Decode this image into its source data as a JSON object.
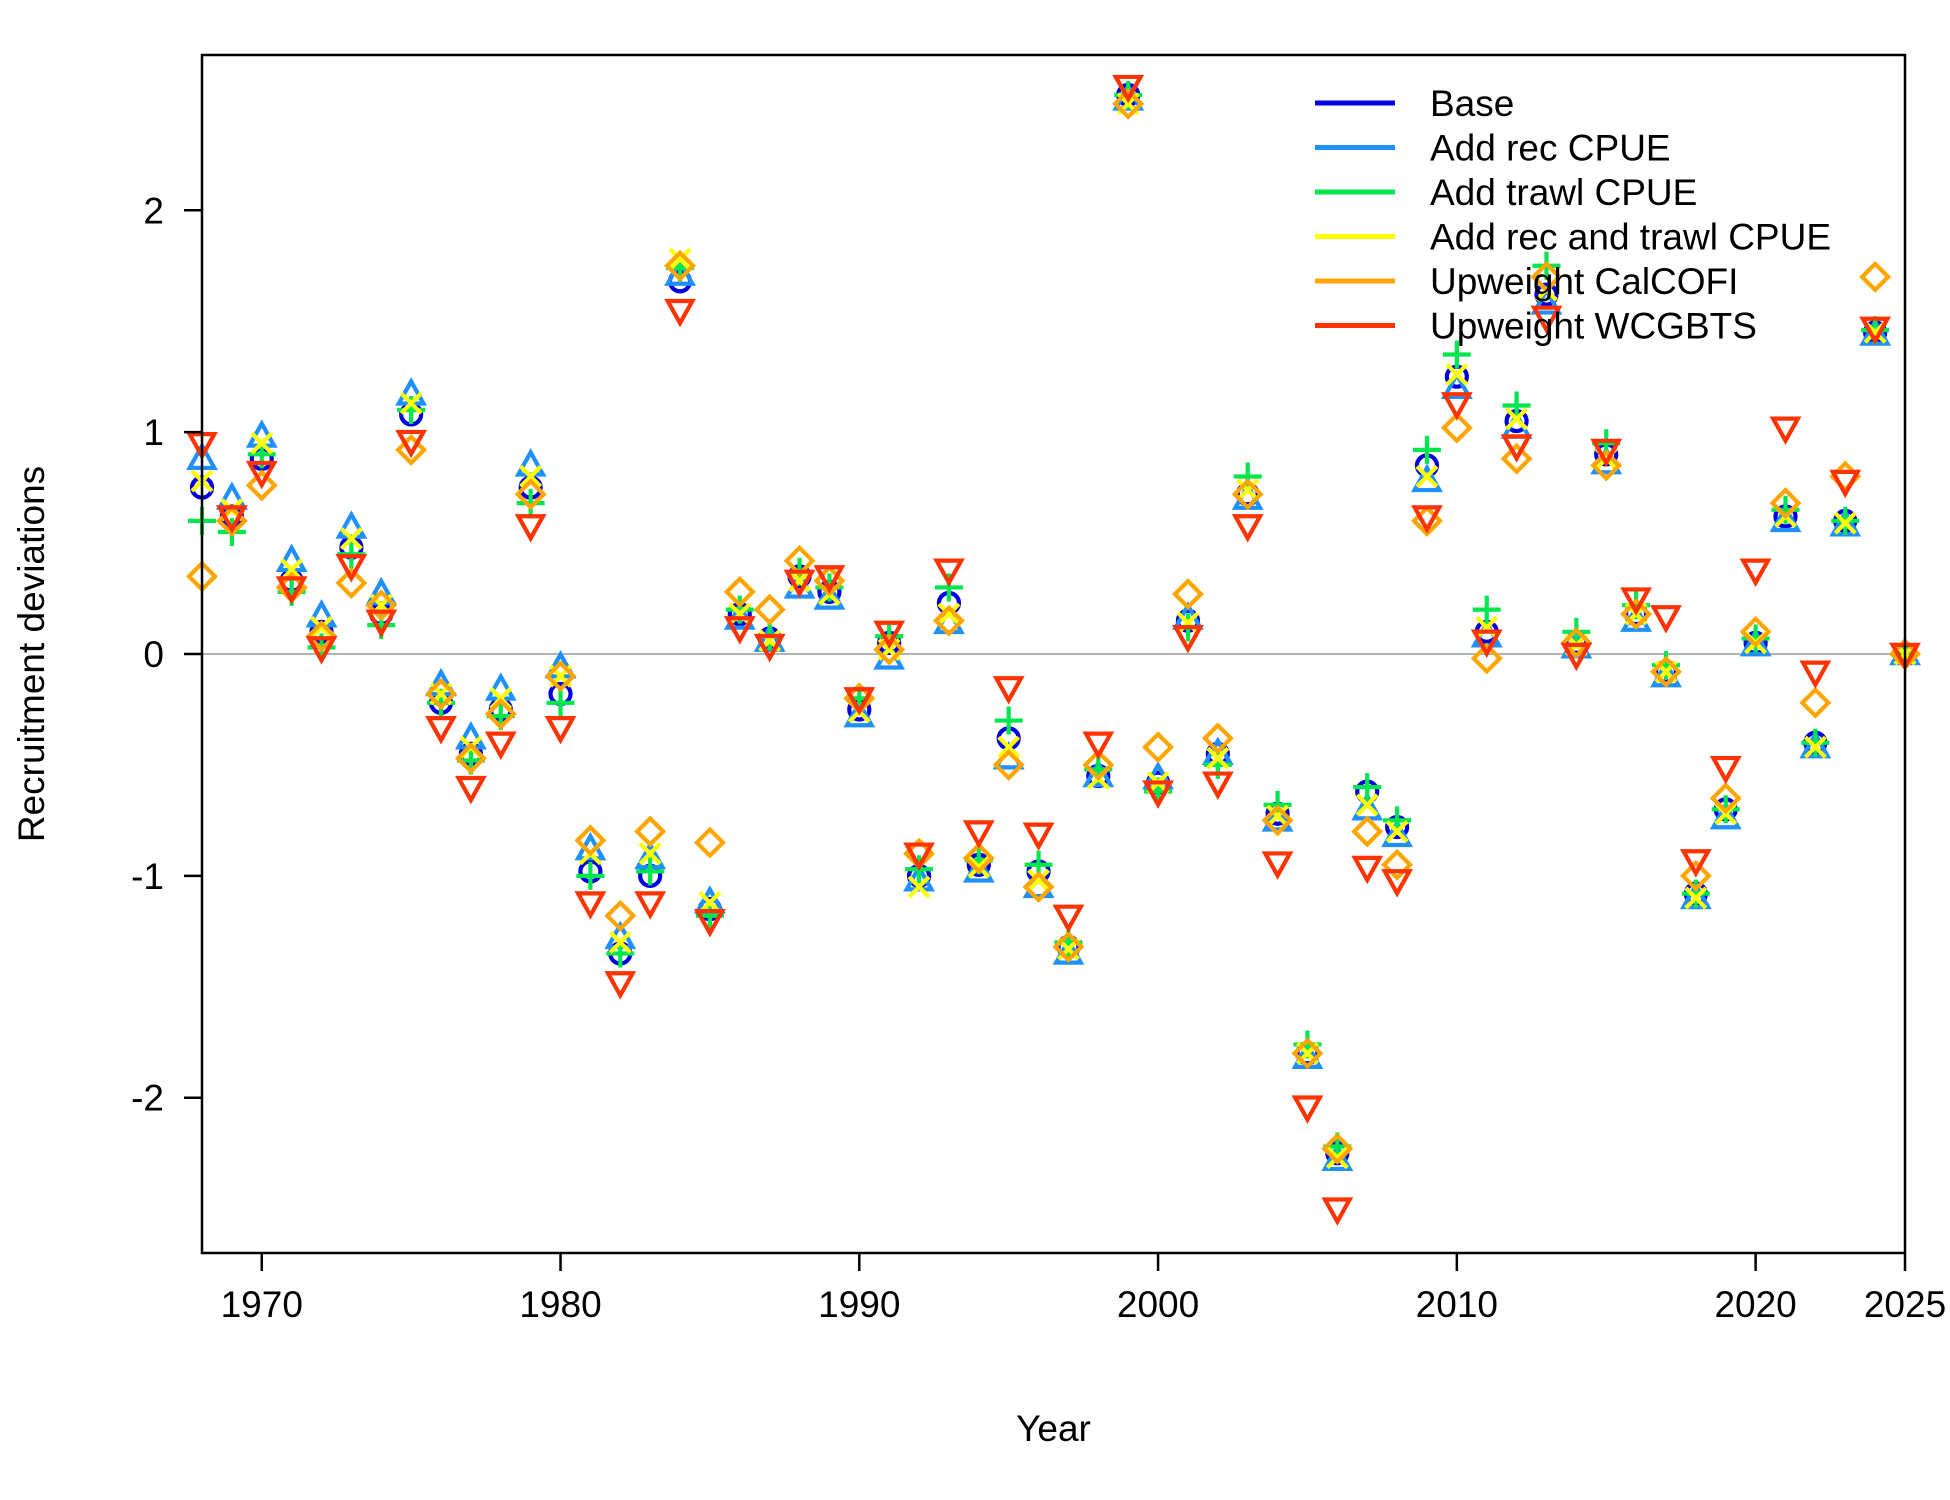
{
  "chart_data": {
    "type": "scatter",
    "xlabel": "Year",
    "ylabel": "Recruitment deviations",
    "xlim": [
      1968,
      2025
    ],
    "ylim": [
      -2.7,
      2.7
    ],
    "x_ticks": [
      1970,
      1980,
      1990,
      2000,
      2010,
      2020,
      2025
    ],
    "x_tick_labels": [
      "1970",
      "1980",
      "1990",
      "2000",
      "2010",
      "2020",
      "2025"
    ],
    "y_ticks": [
      -2,
      -1,
      0,
      1,
      2
    ],
    "y_tick_labels": [
      "-2",
      "-1",
      "0",
      "1",
      "2"
    ],
    "zero_line": 0,
    "grid": false,
    "legend_position": "top-right",
    "x": [
      1968,
      1969,
      1970,
      1971,
      1972,
      1973,
      1974,
      1975,
      1976,
      1977,
      1978,
      1979,
      1980,
      1981,
      1982,
      1983,
      1984,
      1985,
      1986,
      1987,
      1988,
      1989,
      1990,
      1991,
      1992,
      1993,
      1994,
      1995,
      1996,
      1997,
      1998,
      1999,
      2000,
      2001,
      2002,
      2003,
      2004,
      2005,
      2006,
      2007,
      2008,
      2009,
      2010,
      2011,
      2012,
      2013,
      2014,
      2015,
      2016,
      2017,
      2018,
      2019,
      2020,
      2021,
      2022,
      2023,
      2024,
      2025
    ],
    "series": [
      {
        "name": "Base",
        "color": "#0000e0",
        "marker": "circle",
        "values": [
          0.75,
          0.62,
          0.88,
          0.33,
          0.1,
          0.48,
          0.18,
          1.08,
          -0.22,
          -0.45,
          -0.25,
          0.75,
          -0.18,
          -0.98,
          -1.35,
          -1.0,
          1.68,
          -1.15,
          0.18,
          0.07,
          0.35,
          0.28,
          -0.25,
          0.05,
          -1.0,
          0.23,
          -0.95,
          -0.38,
          -0.98,
          -1.32,
          -0.55,
          2.52,
          -0.58,
          0.15,
          -0.45,
          0.72,
          -0.72,
          -1.8,
          -2.25,
          -0.62,
          -0.78,
          0.85,
          1.25,
          0.1,
          1.05,
          1.62,
          0.05,
          0.9,
          0.18,
          -0.08,
          -1.08,
          -0.7,
          0.05,
          0.62,
          -0.4,
          0.6,
          1.45,
          0.0
        ]
      },
      {
        "name": "Add rec CPUE",
        "color": "#1e90ff",
        "marker": "triangle-up",
        "values": [
          0.88,
          0.7,
          0.98,
          0.42,
          0.17,
          0.57,
          0.27,
          1.17,
          -0.14,
          -0.38,
          -0.16,
          0.85,
          -0.06,
          -0.88,
          -1.28,
          -0.92,
          1.71,
          -1.12,
          0.16,
          0.06,
          0.3,
          0.25,
          -0.28,
          -0.02,
          -1.02,
          0.14,
          -0.98,
          -0.47,
          -1.05,
          -1.35,
          -0.55,
          2.5,
          -0.56,
          0.16,
          -0.45,
          0.7,
          -0.75,
          -1.82,
          -2.28,
          -0.7,
          -0.82,
          0.78,
          1.2,
          0.08,
          1.02,
          1.58,
          0.03,
          0.86,
          0.15,
          -0.1,
          -1.1,
          -0.74,
          0.04,
          0.6,
          -0.42,
          0.58,
          1.44,
          0.0
        ]
      },
      {
        "name": "Add trawl CPUE",
        "color": "#00e64d",
        "marker": "plus",
        "values": [
          0.6,
          0.55,
          0.9,
          0.28,
          0.03,
          0.45,
          0.13,
          1.1,
          -0.22,
          -0.48,
          -0.28,
          0.68,
          -0.22,
          -1.0,
          -1.35,
          -0.98,
          1.74,
          -1.18,
          0.2,
          0.08,
          0.37,
          0.3,
          -0.2,
          0.08,
          -0.97,
          0.3,
          -0.93,
          -0.3,
          -0.95,
          -1.3,
          -0.52,
          2.52,
          -0.62,
          0.12,
          -0.5,
          0.8,
          -0.68,
          -1.76,
          -2.22,
          -0.6,
          -0.75,
          0.92,
          1.35,
          0.2,
          1.12,
          1.75,
          0.1,
          0.95,
          0.22,
          -0.05,
          -1.08,
          -0.7,
          0.07,
          0.65,
          -0.4,
          0.6,
          1.46,
          0.0
        ]
      },
      {
        "name": "Add rec and trawl CPUE",
        "color": "#ffff00",
        "marker": "cross",
        "values": [
          0.78,
          0.65,
          0.95,
          0.38,
          0.12,
          0.52,
          0.22,
          1.13,
          -0.18,
          -0.42,
          -0.2,
          0.8,
          -0.1,
          -0.9,
          -1.3,
          -0.9,
          1.78,
          -1.12,
          0.18,
          0.06,
          0.33,
          0.27,
          -0.26,
          0.02,
          -1.05,
          0.18,
          -0.96,
          -0.42,
          -1.02,
          -1.33,
          -0.56,
          2.48,
          -0.58,
          0.14,
          -0.47,
          0.74,
          -0.73,
          -1.8,
          -2.27,
          -0.68,
          -0.8,
          0.8,
          1.26,
          0.12,
          1.06,
          1.64,
          0.04,
          0.88,
          0.18,
          -0.08,
          -1.1,
          -0.72,
          0.05,
          0.62,
          -0.42,
          0.59,
          1.45,
          0.0
        ]
      },
      {
        "name": "Upweight CalCOFI",
        "color": "#ffa500",
        "marker": "diamond",
        "values": [
          0.35,
          0.6,
          0.76,
          0.3,
          0.08,
          0.32,
          0.22,
          0.92,
          -0.18,
          -0.47,
          -0.27,
          0.72,
          -0.1,
          -0.84,
          -1.18,
          -0.8,
          1.75,
          -0.85,
          0.28,
          0.2,
          0.42,
          0.33,
          -0.2,
          0.02,
          -0.9,
          0.15,
          -0.92,
          -0.5,
          -1.05,
          -1.32,
          -0.5,
          2.48,
          -0.42,
          0.27,
          -0.38,
          0.72,
          -0.75,
          -1.8,
          -2.23,
          -0.8,
          -0.95,
          0.6,
          1.02,
          -0.02,
          0.88,
          1.7,
          0.05,
          0.85,
          0.18,
          -0.08,
          -1.0,
          -0.65,
          0.1,
          0.68,
          -0.22,
          0.8,
          1.7,
          0.0
        ]
      },
      {
        "name": "Upweight WCGBTS",
        "color": "#ff3300",
        "marker": "triangle-down",
        "values": [
          0.95,
          0.62,
          0.82,
          0.3,
          0.03,
          0.4,
          0.15,
          0.96,
          -0.33,
          -0.6,
          -0.4,
          0.58,
          -0.33,
          -1.12,
          -1.48,
          -1.12,
          1.55,
          -1.2,
          0.12,
          0.04,
          0.33,
          0.35,
          -0.2,
          0.1,
          -0.9,
          0.38,
          -0.8,
          -0.15,
          -0.81,
          -1.18,
          -0.4,
          2.56,
          -0.62,
          0.08,
          -0.58,
          0.58,
          -0.94,
          -2.04,
          -2.5,
          -0.96,
          -1.02,
          0.62,
          1.13,
          0.06,
          0.94,
          1.52,
          0.0,
          0.92,
          0.25,
          0.17,
          -0.93,
          -0.51,
          0.38,
          1.02,
          -0.08,
          0.78,
          1.47,
          0.0
        ]
      }
    ]
  }
}
